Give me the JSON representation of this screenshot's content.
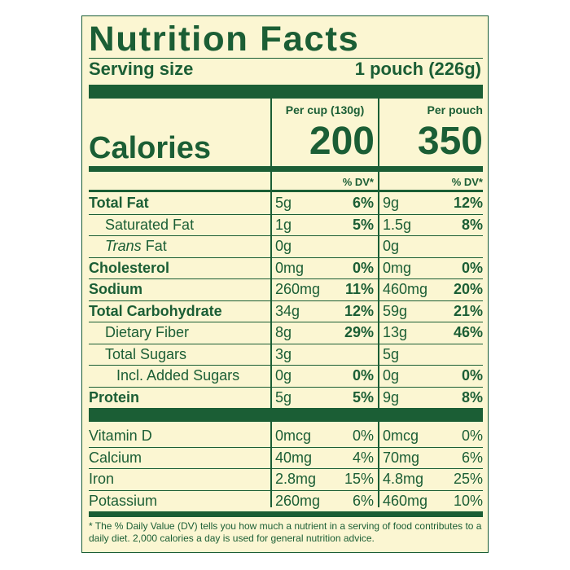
{
  "title": "Nutrition Facts",
  "serving": {
    "label": "Serving size",
    "value": "1 pouch (226g)"
  },
  "columns": [
    {
      "header": "Per cup (130g)",
      "calories": "200",
      "dv_header": "% DV*"
    },
    {
      "header": "Per pouch",
      "calories": "350",
      "dv_header": "% DV*"
    }
  ],
  "calories_label": "Calories",
  "nutrients": [
    {
      "name": "Total Fat",
      "c1": {
        "amount": "5g",
        "dv": "6%"
      },
      "c2": {
        "amount": "9g",
        "dv": "12%"
      }
    },
    {
      "name": "Saturated Fat",
      "c1": {
        "amount": "1g",
        "dv": "5%"
      },
      "c2": {
        "amount": "1.5g",
        "dv": "8%"
      }
    },
    {
      "name_prefix": "Trans",
      "name": "Fat",
      "c1": {
        "amount": "0g",
        "dv": ""
      },
      "c2": {
        "amount": "0g",
        "dv": ""
      }
    },
    {
      "name": "Cholesterol",
      "c1": {
        "amount": "0mg",
        "dv": "0%"
      },
      "c2": {
        "amount": "0mg",
        "dv": "0%"
      }
    },
    {
      "name": "Sodium",
      "c1": {
        "amount": "260mg",
        "dv": "11%"
      },
      "c2": {
        "amount": "460mg",
        "dv": "20%"
      }
    },
    {
      "name": "Total Carbohydrate",
      "c1": {
        "amount": "34g",
        "dv": "12%"
      },
      "c2": {
        "amount": "59g",
        "dv": "21%"
      }
    },
    {
      "name": "Dietary Fiber",
      "c1": {
        "amount": "8g",
        "dv": "29%"
      },
      "c2": {
        "amount": "13g",
        "dv": "46%"
      }
    },
    {
      "name": "Total Sugars",
      "c1": {
        "amount": "3g",
        "dv": ""
      },
      "c2": {
        "amount": "5g",
        "dv": ""
      }
    },
    {
      "name": "Incl. Added Sugars",
      "c1": {
        "amount": "0g",
        "dv": "0%"
      },
      "c2": {
        "amount": "0g",
        "dv": "0%"
      }
    },
    {
      "name": "Protein",
      "c1": {
        "amount": "5g",
        "dv": "5%"
      },
      "c2": {
        "amount": "9g",
        "dv": "8%"
      }
    }
  ],
  "vitamins": [
    {
      "name": "Vitamin D",
      "c1": {
        "amount": "0mcg",
        "dv": "0%"
      },
      "c2": {
        "amount": "0mcg",
        "dv": "0%"
      }
    },
    {
      "name": "Calcium",
      "c1": {
        "amount": "40mg",
        "dv": "4%"
      },
      "c2": {
        "amount": "70mg",
        "dv": "6%"
      }
    },
    {
      "name": "Iron",
      "c1": {
        "amount": "2.8mg",
        "dv": "15%"
      },
      "c2": {
        "amount": "4.8mg",
        "dv": "25%"
      }
    },
    {
      "name": "Potassium",
      "c1": {
        "amount": "260mg",
        "dv": "6%"
      },
      "c2": {
        "amount": "460mg",
        "dv": "10%"
      }
    }
  ],
  "footnote": "* The % Daily Value (DV) tells you how much a nutrient in a serving of food contributes to a daily diet. 2,000 calories a day is used for general nutrition advice.",
  "colors": {
    "ink": "#1b5e35",
    "paper": "#fbf6d2"
  }
}
